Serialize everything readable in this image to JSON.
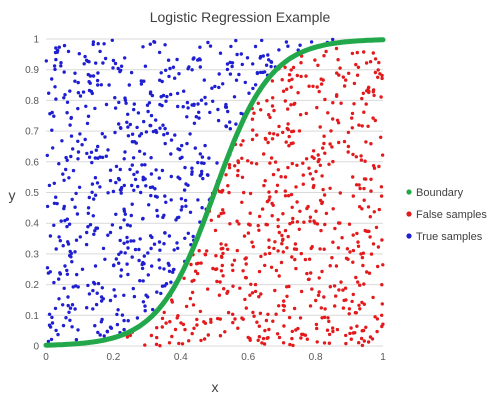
{
  "chart_data": {
    "type": "scatter",
    "title": "Logistic Regression Example",
    "xlabel": "x",
    "ylabel": "y",
    "xlim": [
      0,
      1
    ],
    "ylim": [
      0,
      1
    ],
    "x_ticks": [
      "0",
      "0.2",
      "0.4",
      "0.6",
      "0.8",
      "1"
    ],
    "y_ticks": [
      "0",
      "0.1",
      "0.2",
      "0.3",
      "0.4",
      "0.5",
      "0.6",
      "0.7",
      "0.8",
      "0.9",
      "1"
    ],
    "grid": "horizontal",
    "legend_position": "right",
    "series": [
      {
        "name": "Boundary",
        "color": "#22a84a",
        "kind": "curve",
        "function": "logistic",
        "midpoint": 0.5,
        "steepness": 12
      },
      {
        "name": "False samples",
        "color": "#e31a1c",
        "kind": "points",
        "region": "below-boundary",
        "count": 620
      },
      {
        "name": "True samples",
        "color": "#1f1fd1",
        "kind": "points",
        "region": "above-boundary",
        "count": 620
      }
    ]
  }
}
